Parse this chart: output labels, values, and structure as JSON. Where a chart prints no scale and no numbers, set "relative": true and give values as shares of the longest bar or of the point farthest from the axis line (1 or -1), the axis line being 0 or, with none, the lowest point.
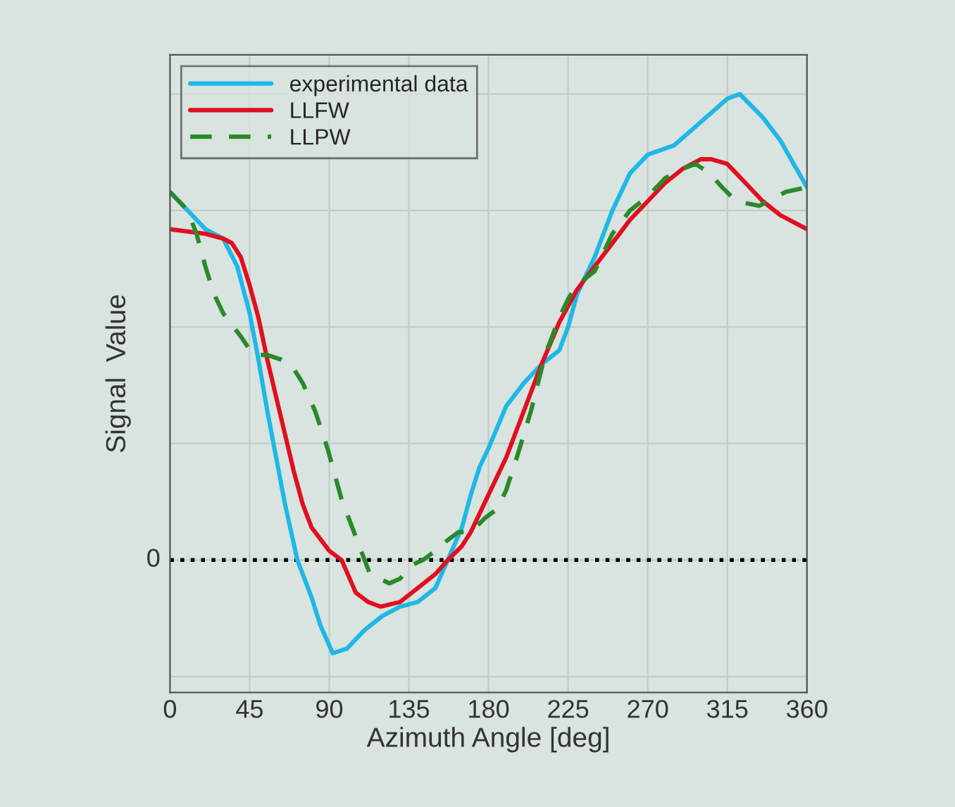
{
  "chart_data": {
    "type": "line",
    "relative": true,
    "xlabel": "Azimuth Angle [deg]",
    "ylabel": "Signal  Value",
    "xlim": [
      0,
      360
    ],
    "xticks": [
      0,
      45,
      90,
      135,
      180,
      225,
      270,
      315,
      360
    ],
    "grid": true,
    "legend": "top left",
    "tick_labels": "x",
    "ref_lines": [
      {
        "axis": "y",
        "value": 0,
        "label": "0",
        "color": "#000000",
        "line_style": "dotted"
      }
    ],
    "series": [
      {
        "name": "experimental data",
        "color": "#1fb8e6",
        "line_style": "solid",
        "x": [
          0,
          10,
          20,
          30,
          38,
          45,
          50,
          55,
          60,
          65,
          72,
          80,
          85,
          92,
          100,
          110,
          120,
          130,
          140,
          150,
          157,
          165,
          170,
          175,
          180,
          190,
          200,
          210,
          220,
          225,
          230,
          240,
          250,
          260,
          270,
          285,
          300,
          315,
          322,
          335,
          345,
          360
        ],
        "values": [
          0.79,
          0.75,
          0.71,
          0.69,
          0.63,
          0.53,
          0.43,
          0.32,
          0.22,
          0.12,
          0,
          -0.08,
          -0.14,
          -0.2,
          -0.19,
          -0.15,
          -0.12,
          -0.1,
          -0.09,
          -0.06,
          0,
          0.07,
          0.14,
          0.2,
          0.24,
          0.33,
          0.38,
          0.42,
          0.45,
          0.5,
          0.57,
          0.65,
          0.75,
          0.83,
          0.87,
          0.89,
          0.94,
          0.99,
          1,
          0.95,
          0.9,
          0.8
        ]
      },
      {
        "name": "LLFW",
        "color": "#e01020",
        "line_style": "solid",
        "x": [
          0,
          20,
          30,
          35,
          40,
          45,
          50,
          55,
          60,
          65,
          70,
          75,
          80,
          90,
          97,
          105,
          112,
          119,
          130,
          140,
          150,
          157,
          165,
          170,
          180,
          190,
          200,
          210,
          220,
          230,
          240,
          250,
          260,
          270,
          280,
          290,
          300,
          306,
          315,
          325,
          335,
          345,
          360
        ],
        "values": [
          0.71,
          0.7,
          0.69,
          0.68,
          0.65,
          0.59,
          0.52,
          0.43,
          0.35,
          0.27,
          0.19,
          0.12,
          0.07,
          0.02,
          0,
          -0.07,
          -0.09,
          -0.1,
          -0.09,
          -0.06,
          -0.03,
          0,
          0.03,
          0.06,
          0.14,
          0.22,
          0.32,
          0.42,
          0.51,
          0.58,
          0.63,
          0.68,
          0.73,
          0.77,
          0.81,
          0.84,
          0.86,
          0.86,
          0.85,
          0.81,
          0.77,
          0.74,
          0.71
        ]
      },
      {
        "name": "LLPW",
        "color": "#2a8a2a",
        "line_style": "dashed",
        "x": [
          0,
          10,
          15,
          20,
          25,
          30,
          40,
          47,
          55,
          63,
          70,
          75,
          82,
          89,
          97,
          105,
          113,
          124,
          130,
          137,
          143,
          150,
          156,
          163,
          170,
          178,
          185,
          190,
          196,
          204,
          212,
          220,
          225,
          230,
          240,
          250,
          260,
          270,
          280,
          290,
          297,
          305,
          312,
          320,
          333,
          348,
          360
        ],
        "values": [
          0.79,
          0.75,
          0.7,
          0.63,
          0.57,
          0.53,
          0.48,
          0.44,
          0.44,
          0.43,
          0.41,
          0.38,
          0.32,
          0.24,
          0.13,
          0.05,
          -0.03,
          -0.05,
          -0.04,
          -0.01,
          0,
          0.02,
          0.04,
          0.06,
          0.06,
          0.09,
          0.11,
          0.15,
          0.22,
          0.32,
          0.44,
          0.52,
          0.56,
          0.59,
          0.62,
          0.7,
          0.75,
          0.78,
          0.82,
          0.84,
          0.85,
          0.83,
          0.8,
          0.77,
          0.76,
          0.79,
          0.8
        ]
      }
    ]
  }
}
